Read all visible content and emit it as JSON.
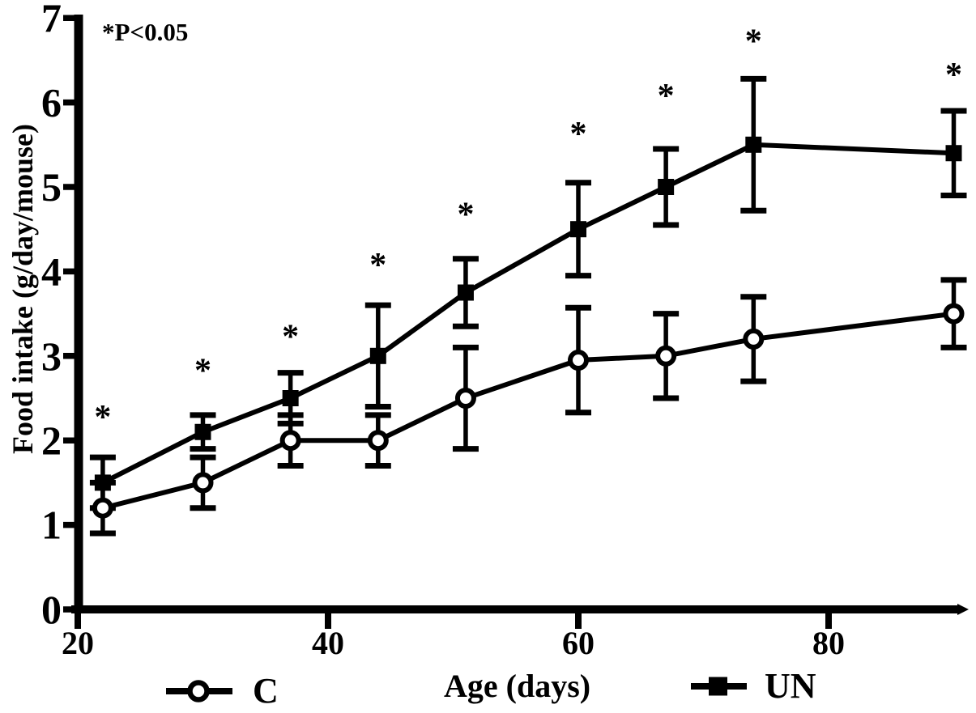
{
  "colors": {
    "foreground": "#000000",
    "background": "#ffffff"
  },
  "chart_data": {
    "type": "line",
    "title": "",
    "xlabel": "Age (days)",
    "ylabel": "Food intake (g/day/mouse)",
    "annotation": "*P<0.05",
    "grid": false,
    "legend_position": "bottom",
    "xlim": [
      20,
      91
    ],
    "ylim": [
      0,
      7
    ],
    "x_ticks": [
      20,
      40,
      60,
      80
    ],
    "y_ticks": [
      0,
      1,
      2,
      3,
      4,
      5,
      6,
      7
    ],
    "x": [
      22,
      30,
      37,
      44,
      51,
      60,
      67,
      74,
      90
    ],
    "series": [
      {
        "name": "C",
        "marker": "open-circle",
        "values": [
          1.2,
          1.5,
          2.0,
          2.0,
          2.5,
          2.95,
          3.0,
          3.2,
          3.5
        ],
        "errors": [
          0.3,
          0.3,
          0.3,
          0.3,
          0.6,
          0.62,
          0.5,
          0.5,
          0.4
        ]
      },
      {
        "name": "UN",
        "marker": "filled-square",
        "values": [
          1.5,
          2.1,
          2.5,
          3.0,
          3.75,
          4.5,
          5.0,
          5.5,
          5.4
        ],
        "errors": [
          0.3,
          0.2,
          0.3,
          0.6,
          0.4,
          0.55,
          0.45,
          0.78,
          0.5
        ]
      }
    ],
    "significance": {
      "symbol": "*",
      "y": [
        2.3,
        2.85,
        3.25,
        4.1,
        4.7,
        5.65,
        6.1,
        6.75,
        6.35
      ]
    }
  }
}
